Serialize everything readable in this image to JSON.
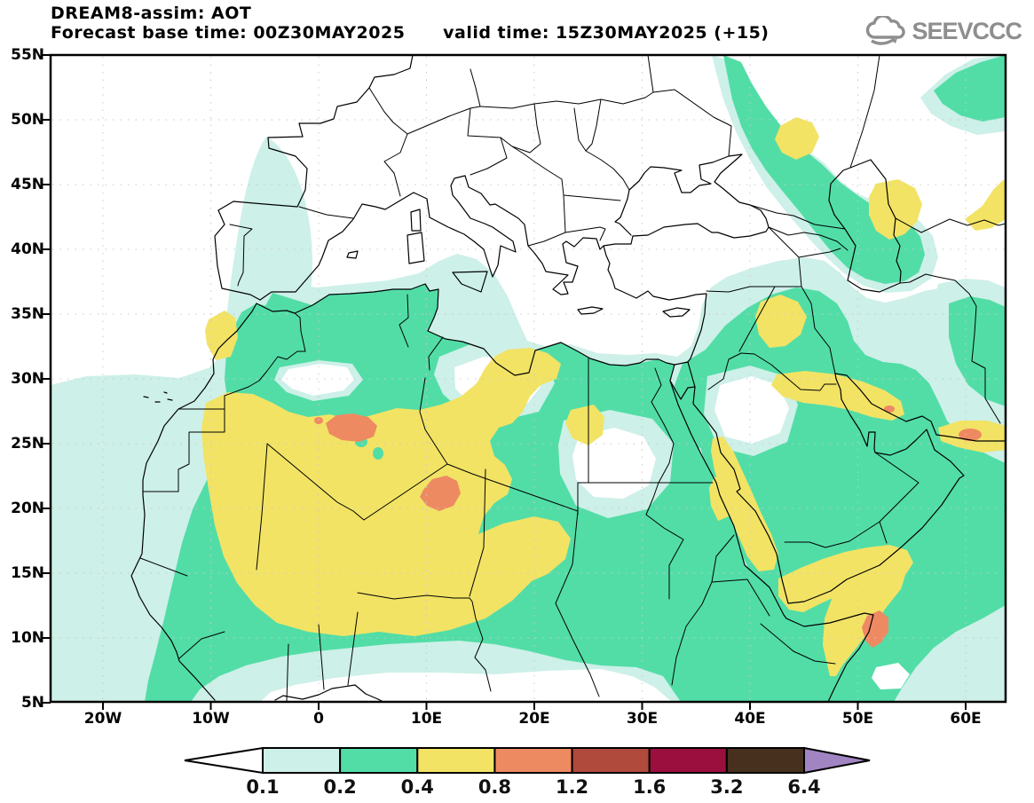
{
  "title": {
    "line1": "DREAM8-assim: AOT",
    "line2": "Forecast base time: 00Z30MAY2025      valid time: 15Z30MAY2025 (+15)"
  },
  "logo": {
    "text": "SEEVCCC"
  },
  "axes": {
    "lat_ticks": [
      "55N",
      "50N",
      "45N",
      "40N",
      "35N",
      "30N",
      "25N",
      "20N",
      "15N",
      "10N",
      "5N"
    ],
    "lon_ticks": [
      "20W",
      "10W",
      "0",
      "10E",
      "20E",
      "30E",
      "40E",
      "50E",
      "60E"
    ]
  },
  "colorbar": {
    "values": [
      "0.1",
      "0.2",
      "0.4",
      "0.8",
      "1.2",
      "1.6",
      "3.2",
      "6.4"
    ],
    "cell_colors": [
      "#cdf0e8",
      "#52dda7",
      "#f2e365",
      "#ee8a62",
      "#b04a3c",
      "#9b0f3e",
      "#47311e"
    ],
    "left_arrow_color": "#ffffff",
    "right_arrow_color": "#a185c3"
  },
  "map": {
    "field": "AOT",
    "contour_levels": [
      0.1,
      0.2,
      0.4,
      0.8,
      1.2,
      1.6,
      3.2,
      6.4
    ],
    "fill_colors": {
      "level_0_1": "#cdf0e8",
      "level_0_2": "#52dda7",
      "level_0_4": "#f2e365",
      "level_0_8": "#ee8a62"
    },
    "grid_color": "#c9c9c9"
  }
}
